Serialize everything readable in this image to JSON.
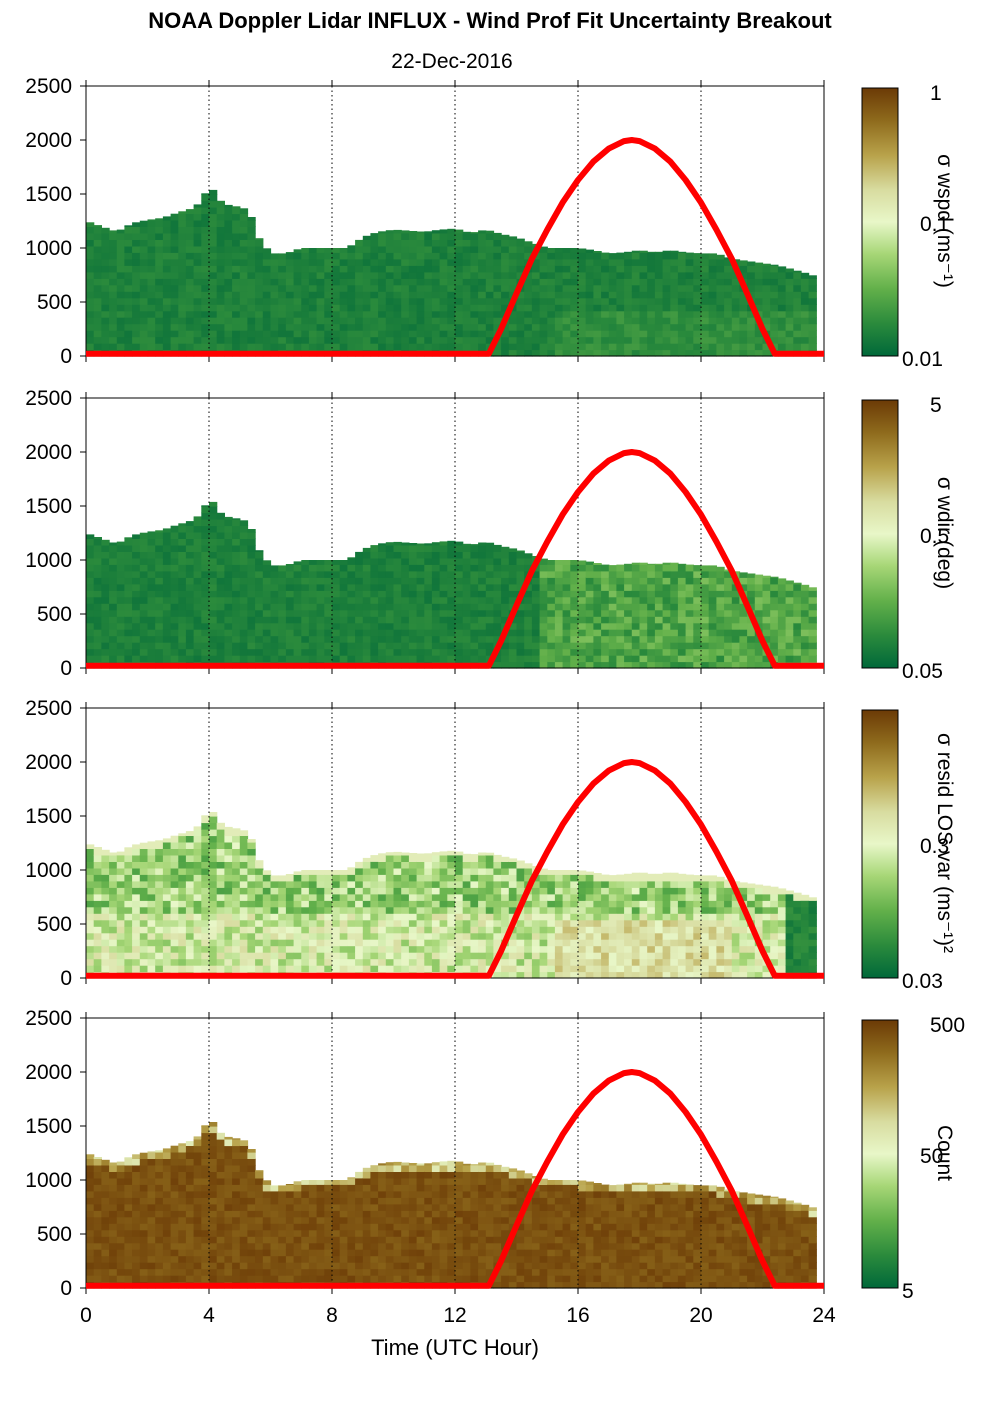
{
  "title": "NOAA Doppler Lidar INFLUX - Wind Prof Fit Uncertainty Breakout",
  "subtitle": "22-Dec-2016",
  "colors": {
    "sun_curve": "#ff0000",
    "baseline": "#ff0000",
    "colormap": [
      "#00683a",
      "#2a8a3c",
      "#62b04a",
      "#a6d676",
      "#e8f7c8",
      "#d8dca0",
      "#b8a24a",
      "#8e6a1c",
      "#6b3a06"
    ]
  },
  "chart_data": {
    "type": "heatmap",
    "xlabel": "Time (UTC Hour)",
    "x_ticks": [
      0,
      4,
      8,
      12,
      16,
      20,
      24
    ],
    "y_ticks": [
      0,
      500,
      1000,
      1500,
      2000,
      2500
    ],
    "xlim": [
      0,
      24
    ],
    "ylim": [
      0,
      2500
    ],
    "grid": "vertical dotted at 4-hour ticks",
    "cloud_top_profile_m": {
      "x": [
        0,
        0.5,
        1,
        1.5,
        2,
        2.5,
        3,
        3.5,
        3.8,
        4,
        4.3,
        4.6,
        5,
        5.3,
        5.6,
        6,
        6.5,
        7,
        7.5,
        8,
        8.5,
        9,
        9.5,
        10,
        10.5,
        11,
        11.5,
        12,
        12.5,
        13,
        13.5,
        14,
        14.5,
        15,
        15.5,
        16,
        16.5,
        17,
        17.5,
        18,
        18.5,
        19,
        19.5,
        20,
        20.5,
        21,
        21.5,
        22,
        22.5,
        23,
        23.5,
        23.8
      ],
      "y": [
        1250,
        1200,
        1150,
        1230,
        1260,
        1280,
        1330,
        1370,
        1450,
        1600,
        1450,
        1400,
        1380,
        1350,
        1100,
        950,
        950,
        1000,
        1000,
        1000,
        1000,
        1100,
        1150,
        1170,
        1160,
        1150,
        1170,
        1180,
        1140,
        1170,
        1130,
        1100,
        1050,
        1000,
        1000,
        1000,
        980,
        950,
        960,
        980,
        960,
        980,
        960,
        950,
        950,
        900,
        880,
        860,
        840,
        800,
        760,
        730
      ]
    },
    "solar_elevation_curve": {
      "x": [
        0,
        13.1,
        13.5,
        14,
        14.5,
        15,
        15.5,
        16,
        16.5,
        17,
        17.5,
        17.75,
        18,
        18.5,
        19,
        19.5,
        20,
        20.5,
        21,
        21.5,
        22,
        22.4,
        24
      ],
      "y": [
        20,
        20,
        250,
        580,
        900,
        1170,
        1420,
        1630,
        1800,
        1920,
        1990,
        2000,
        1990,
        1920,
        1800,
        1630,
        1420,
        1170,
        900,
        580,
        250,
        20,
        20
      ]
    },
    "panels": [
      {
        "colorbar_label": "σ wspd (ms⁻¹)",
        "colorbar_ticks": [
          "1",
          "0.1",
          "0.01"
        ],
        "values_description": "mostly low uncertainty",
        "dominant_level": 0.08
      },
      {
        "colorbar_label": "σ wdir (deg)",
        "colorbar_ticks": [
          "5",
          "0.5",
          "0.05"
        ],
        "values_description": "low with moderate region after 15 UTC",
        "dominant_level": 0.12
      },
      {
        "colorbar_label": "σ resid LOS var (ms⁻¹)²",
        "colorbar_ticks": [
          "",
          "0.3",
          "0.03"
        ],
        "values_description": "mixed, higher near surface mid-day",
        "dominant_level": 0.35
      },
      {
        "colorbar_label": "Count",
        "colorbar_ticks": [
          "500",
          "50",
          "5"
        ],
        "values_description": "high counts throughout boundary layer",
        "dominant_level": 0.95
      }
    ]
  }
}
